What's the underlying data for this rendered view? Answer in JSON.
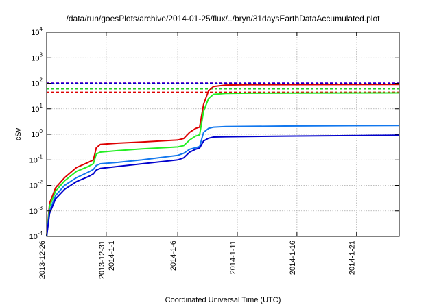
{
  "chart_data": {
    "type": "line",
    "title": "/data/run/goesPlots/archive/2014-01-25/flux/../bryn/31daysEarthDataAccumulated.plot",
    "xlabel": "Coordinated Universal Time (UTC)",
    "ylabel": "cSv",
    "y_scale": "log",
    "ylim": [
      0.0001,
      10000
    ],
    "xlim": [
      "2013-12-26",
      "2014-01-24 14:00"
    ],
    "grid": true,
    "y_ticks": [
      {
        "value": 0.0001,
        "base": "10",
        "exp": "-4"
      },
      {
        "value": 0.001,
        "base": "10",
        "exp": "-3"
      },
      {
        "value": 0.01,
        "base": "10",
        "exp": "-2"
      },
      {
        "value": 0.1,
        "base": "10",
        "exp": "-1"
      },
      {
        "value": 1,
        "base": "10",
        "exp": "0"
      },
      {
        "value": 10,
        "base": "10",
        "exp": "1"
      },
      {
        "value": 100,
        "base": "10",
        "exp": "2"
      },
      {
        "value": 1000,
        "base": "10",
        "exp": "3"
      },
      {
        "value": 10000,
        "base": "10",
        "exp": "4"
      }
    ],
    "x_ticks": [
      {
        "date": "2013-12-26",
        "labels": [
          "2013-12-26"
        ]
      },
      {
        "date": "2013-12-31",
        "labels": [
          "2013-12-31",
          "2014-1-1"
        ]
      },
      {
        "date": "2014-01-06",
        "labels": [
          "2014-1-6"
        ]
      },
      {
        "date": "2014-01-11",
        "labels": [
          "2014-1-11"
        ]
      },
      {
        "date": "2014-01-16",
        "labels": [
          "2014-1-16"
        ]
      },
      {
        "date": "2014-01-21",
        "labels": [
          "2014-1-21"
        ]
      }
    ],
    "thresholds": [
      {
        "y": 110,
        "color": "#8800cc"
      },
      {
        "y": 100,
        "color": "#0000cc"
      },
      {
        "y": 60,
        "color": "#22cc22"
      },
      {
        "y": 45,
        "color": "#dd0000"
      }
    ],
    "series": [
      {
        "color": "#dd0000",
        "points": [
          [
            "2013-12-26 00:00",
            0.0001
          ],
          [
            "2013-12-26 06:00",
            0.002
          ],
          [
            "2013-12-26 18:00",
            0.008
          ],
          [
            "2013-12-27 12:00",
            0.02
          ],
          [
            "2013-12-28 12:00",
            0.05
          ],
          [
            "2013-12-29 12:00",
            0.08
          ],
          [
            "2013-12-29 22:00",
            0.1
          ],
          [
            "2013-12-30 04:00",
            0.3
          ],
          [
            "2013-12-30 12:00",
            0.4
          ],
          [
            "2014-01-01 00:00",
            0.45
          ],
          [
            "2014-01-03 00:00",
            0.5
          ],
          [
            "2014-01-06 00:00",
            0.6
          ],
          [
            "2014-01-06 12:00",
            0.68
          ],
          [
            "2014-01-07 00:00",
            1.2
          ],
          [
            "2014-01-07 12:00",
            1.7
          ],
          [
            "2014-01-07 20:00",
            1.9
          ],
          [
            "2014-01-08 04:00",
            15
          ],
          [
            "2014-01-08 14:00",
            50
          ],
          [
            "2014-01-09 00:00",
            75
          ],
          [
            "2014-01-10 00:00",
            85
          ],
          [
            "2014-01-12 00:00",
            88
          ],
          [
            "2014-01-24 14:00",
            90
          ]
        ]
      },
      {
        "color": "#22ee22",
        "points": [
          [
            "2013-12-26 00:00",
            0.0001
          ],
          [
            "2013-12-26 06:00",
            0.0015
          ],
          [
            "2013-12-26 18:00",
            0.006
          ],
          [
            "2013-12-27 12:00",
            0.015
          ],
          [
            "2013-12-28 12:00",
            0.035
          ],
          [
            "2013-12-29 12:00",
            0.055
          ],
          [
            "2013-12-29 22:00",
            0.07
          ],
          [
            "2013-12-30 04:00",
            0.17
          ],
          [
            "2013-12-30 12:00",
            0.2
          ],
          [
            "2014-01-01 00:00",
            0.23
          ],
          [
            "2014-01-03 00:00",
            0.27
          ],
          [
            "2014-01-06 00:00",
            0.32
          ],
          [
            "2014-01-06 12:00",
            0.36
          ],
          [
            "2014-01-07 00:00",
            0.6
          ],
          [
            "2014-01-07 12:00",
            0.85
          ],
          [
            "2014-01-07 20:00",
            0.95
          ],
          [
            "2014-01-08 04:00",
            8
          ],
          [
            "2014-01-08 14:00",
            25
          ],
          [
            "2014-01-09 00:00",
            37
          ],
          [
            "2014-01-10 00:00",
            40
          ],
          [
            "2014-01-12 00:00",
            41
          ],
          [
            "2014-01-24 14:00",
            42
          ]
        ]
      },
      {
        "color": "#1177ee",
        "points": [
          [
            "2013-12-26 00:00",
            0.0001
          ],
          [
            "2013-12-26 06:00",
            0.001
          ],
          [
            "2013-12-26 18:00",
            0.004
          ],
          [
            "2013-12-27 12:00",
            0.01
          ],
          [
            "2013-12-28 12:00",
            0.02
          ],
          [
            "2013-12-29 12:00",
            0.033
          ],
          [
            "2013-12-29 22:00",
            0.042
          ],
          [
            "2013-12-30 04:00",
            0.06
          ],
          [
            "2013-12-30 12:00",
            0.07
          ],
          [
            "2014-01-01 00:00",
            0.08
          ],
          [
            "2014-01-03 00:00",
            0.1
          ],
          [
            "2014-01-06 00:00",
            0.15
          ],
          [
            "2014-01-06 12:00",
            0.18
          ],
          [
            "2014-01-07 00:00",
            0.26
          ],
          [
            "2014-01-07 12:00",
            0.3
          ],
          [
            "2014-01-07 20:00",
            0.33
          ],
          [
            "2014-01-08 04:00",
            1.2
          ],
          [
            "2014-01-08 14:00",
            1.7
          ],
          [
            "2014-01-09 00:00",
            1.9
          ],
          [
            "2014-01-10 00:00",
            2.0
          ],
          [
            "2014-01-15 00:00",
            2.1
          ],
          [
            "2014-01-24 14:00",
            2.2
          ]
        ]
      },
      {
        "color": "#0000cc",
        "points": [
          [
            "2013-12-26 00:00",
            0.0001
          ],
          [
            "2013-12-26 06:00",
            0.0008
          ],
          [
            "2013-12-26 18:00",
            0.003
          ],
          [
            "2013-12-27 12:00",
            0.007
          ],
          [
            "2013-12-28 12:00",
            0.014
          ],
          [
            "2013-12-29 12:00",
            0.022
          ],
          [
            "2013-12-29 22:00",
            0.028
          ],
          [
            "2013-12-30 04:00",
            0.04
          ],
          [
            "2013-12-30 12:00",
            0.046
          ],
          [
            "2014-01-01 00:00",
            0.055
          ],
          [
            "2014-01-03 00:00",
            0.07
          ],
          [
            "2014-01-06 00:00",
            0.1
          ],
          [
            "2014-01-06 12:00",
            0.12
          ],
          [
            "2014-01-07 00:00",
            0.2
          ],
          [
            "2014-01-07 12:00",
            0.26
          ],
          [
            "2014-01-07 20:00",
            0.29
          ],
          [
            "2014-01-08 04:00",
            0.55
          ],
          [
            "2014-01-08 14:00",
            0.7
          ],
          [
            "2014-01-09 00:00",
            0.78
          ],
          [
            "2014-01-10 00:00",
            0.8
          ],
          [
            "2014-01-15 00:00",
            0.85
          ],
          [
            "2014-01-24 14:00",
            0.92
          ]
        ]
      }
    ]
  }
}
